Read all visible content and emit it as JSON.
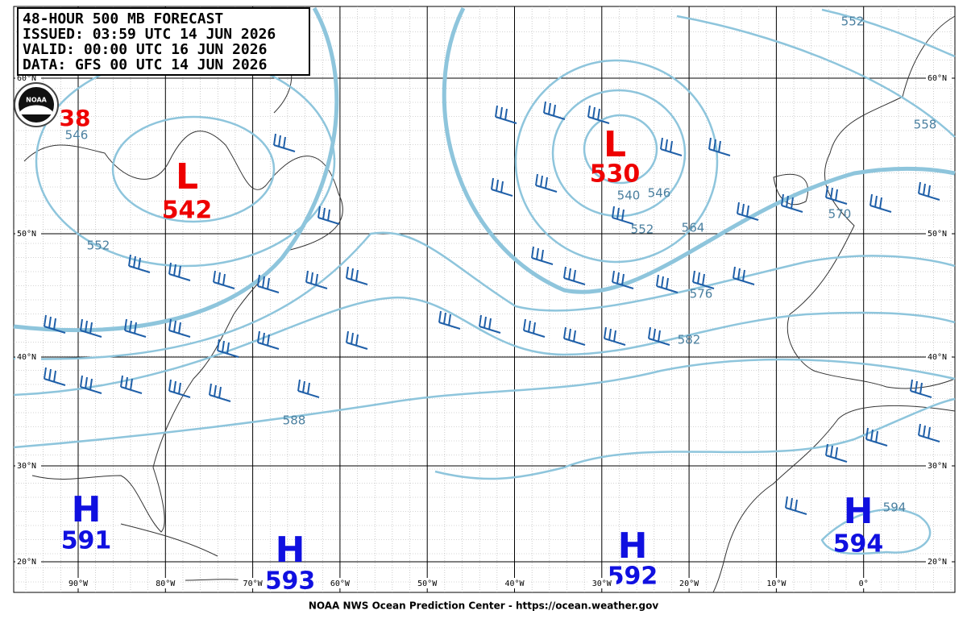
{
  "header": {
    "lines": [
      "48-HOUR 500 MB FORECAST",
      "ISSUED: 03:59 UTC 14 JUN 2026",
      "VALID:  00:00 UTC 16 JUN 2026",
      "DATA:  GFS 00 UTC 14 JUN 2026"
    ]
  },
  "logo": "NOAA",
  "centers": [
    {
      "letter": "L",
      "value": "542"
    },
    {
      "letter": "L",
      "value": "530"
    },
    {
      "letter": "H",
      "value": "591"
    },
    {
      "letter": "H",
      "value": "593"
    },
    {
      "letter": "H",
      "value": "592"
    },
    {
      "letter": "H",
      "value": "594"
    }
  ],
  "partial_center_value": "38",
  "contour_labels": [
    "552",
    "558",
    "540",
    "546",
    "552",
    "564",
    "570",
    "576",
    "582",
    "588",
    "594",
    "552",
    "546"
  ],
  "lat_labels": [
    "60°N",
    "50°N",
    "40°N",
    "30°N",
    "20°N"
  ],
  "lon_labels": [
    "90°W",
    "80°W",
    "70°W",
    "60°W",
    "50°W",
    "40°W",
    "30°W",
    "20°W",
    "10°W",
    "0°"
  ],
  "footer": "NOAA NWS Ocean Prediction Center - https://ocean.weather.gov"
}
